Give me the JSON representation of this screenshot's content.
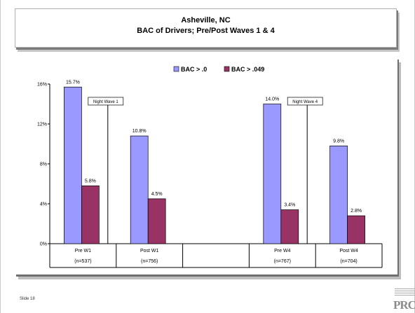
{
  "slide": {
    "title_line1": "Asheville, NC",
    "title_line2": "BAC of Drivers; Pre/Post Waves 1 & 4",
    "slide_number": "Slide 18",
    "logo_text": "PRC"
  },
  "colors": {
    "series1": "#9999ff",
    "series2": "#993366",
    "axis": "#000000"
  },
  "chart_data": {
    "type": "bar",
    "categories": [
      "Pre W1",
      "Post W1",
      "",
      "Pre W4",
      "Post W4"
    ],
    "category_sublabels": [
      "(n=537)",
      "(n=756)",
      "",
      "(n=767)",
      "(n=704)"
    ],
    "series": [
      {
        "name": "BAC > .0",
        "values": [
          15.7,
          10.8,
          null,
          14.0,
          9.8
        ],
        "labels": [
          "15.7%",
          "10.8%",
          "",
          "14.0%",
          "9.8%"
        ]
      },
      {
        "name": "BAC > .049",
        "values": [
          5.8,
          4.5,
          null,
          3.4,
          2.8
        ],
        "labels": [
          "5.8%",
          "4.5%",
          "",
          "3.4%",
          "2.8%"
        ]
      }
    ],
    "ylim": [
      0,
      16
    ],
    "yticks": [
      0,
      4,
      8,
      12,
      16
    ],
    "ytick_labels": [
      "0%",
      "4%",
      "8%",
      "12%",
      "16%"
    ],
    "legend_position": "top-center",
    "grid": false,
    "annotations": [
      {
        "text": "Night Wave 1",
        "between": [
          0,
          1
        ]
      },
      {
        "text": "Night Wave 4",
        "between": [
          3,
          4
        ]
      }
    ]
  }
}
